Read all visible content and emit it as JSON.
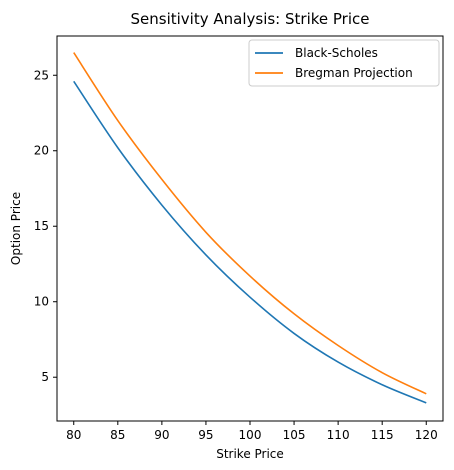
{
  "chart_data": {
    "type": "line",
    "title": "Sensitivity Analysis: Strike Price",
    "xlabel": "Strike Price",
    "ylabel": "Option Price",
    "xlim": [
      78.1,
      121.9
    ],
    "ylim": [
      2.1,
      27.6
    ],
    "xticks": [
      80,
      85,
      90,
      95,
      100,
      105,
      110,
      115,
      120
    ],
    "yticks": [
      5,
      10,
      15,
      20,
      25
    ],
    "grid": false,
    "legend_position": "top-right",
    "x": [
      80,
      85,
      90,
      95,
      100,
      105,
      110,
      115,
      120
    ],
    "series": [
      {
        "name": "Black-Scholes",
        "color": "#1f77b4",
        "values": [
          24.6,
          20.2,
          16.4,
          13.1,
          10.3,
          7.9,
          6.0,
          4.5,
          3.3
        ]
      },
      {
        "name": "Bregman Projection",
        "color": "#ff7f0e",
        "values": [
          26.5,
          22.0,
          18.1,
          14.6,
          11.7,
          9.2,
          7.1,
          5.3,
          3.9
        ]
      }
    ]
  }
}
